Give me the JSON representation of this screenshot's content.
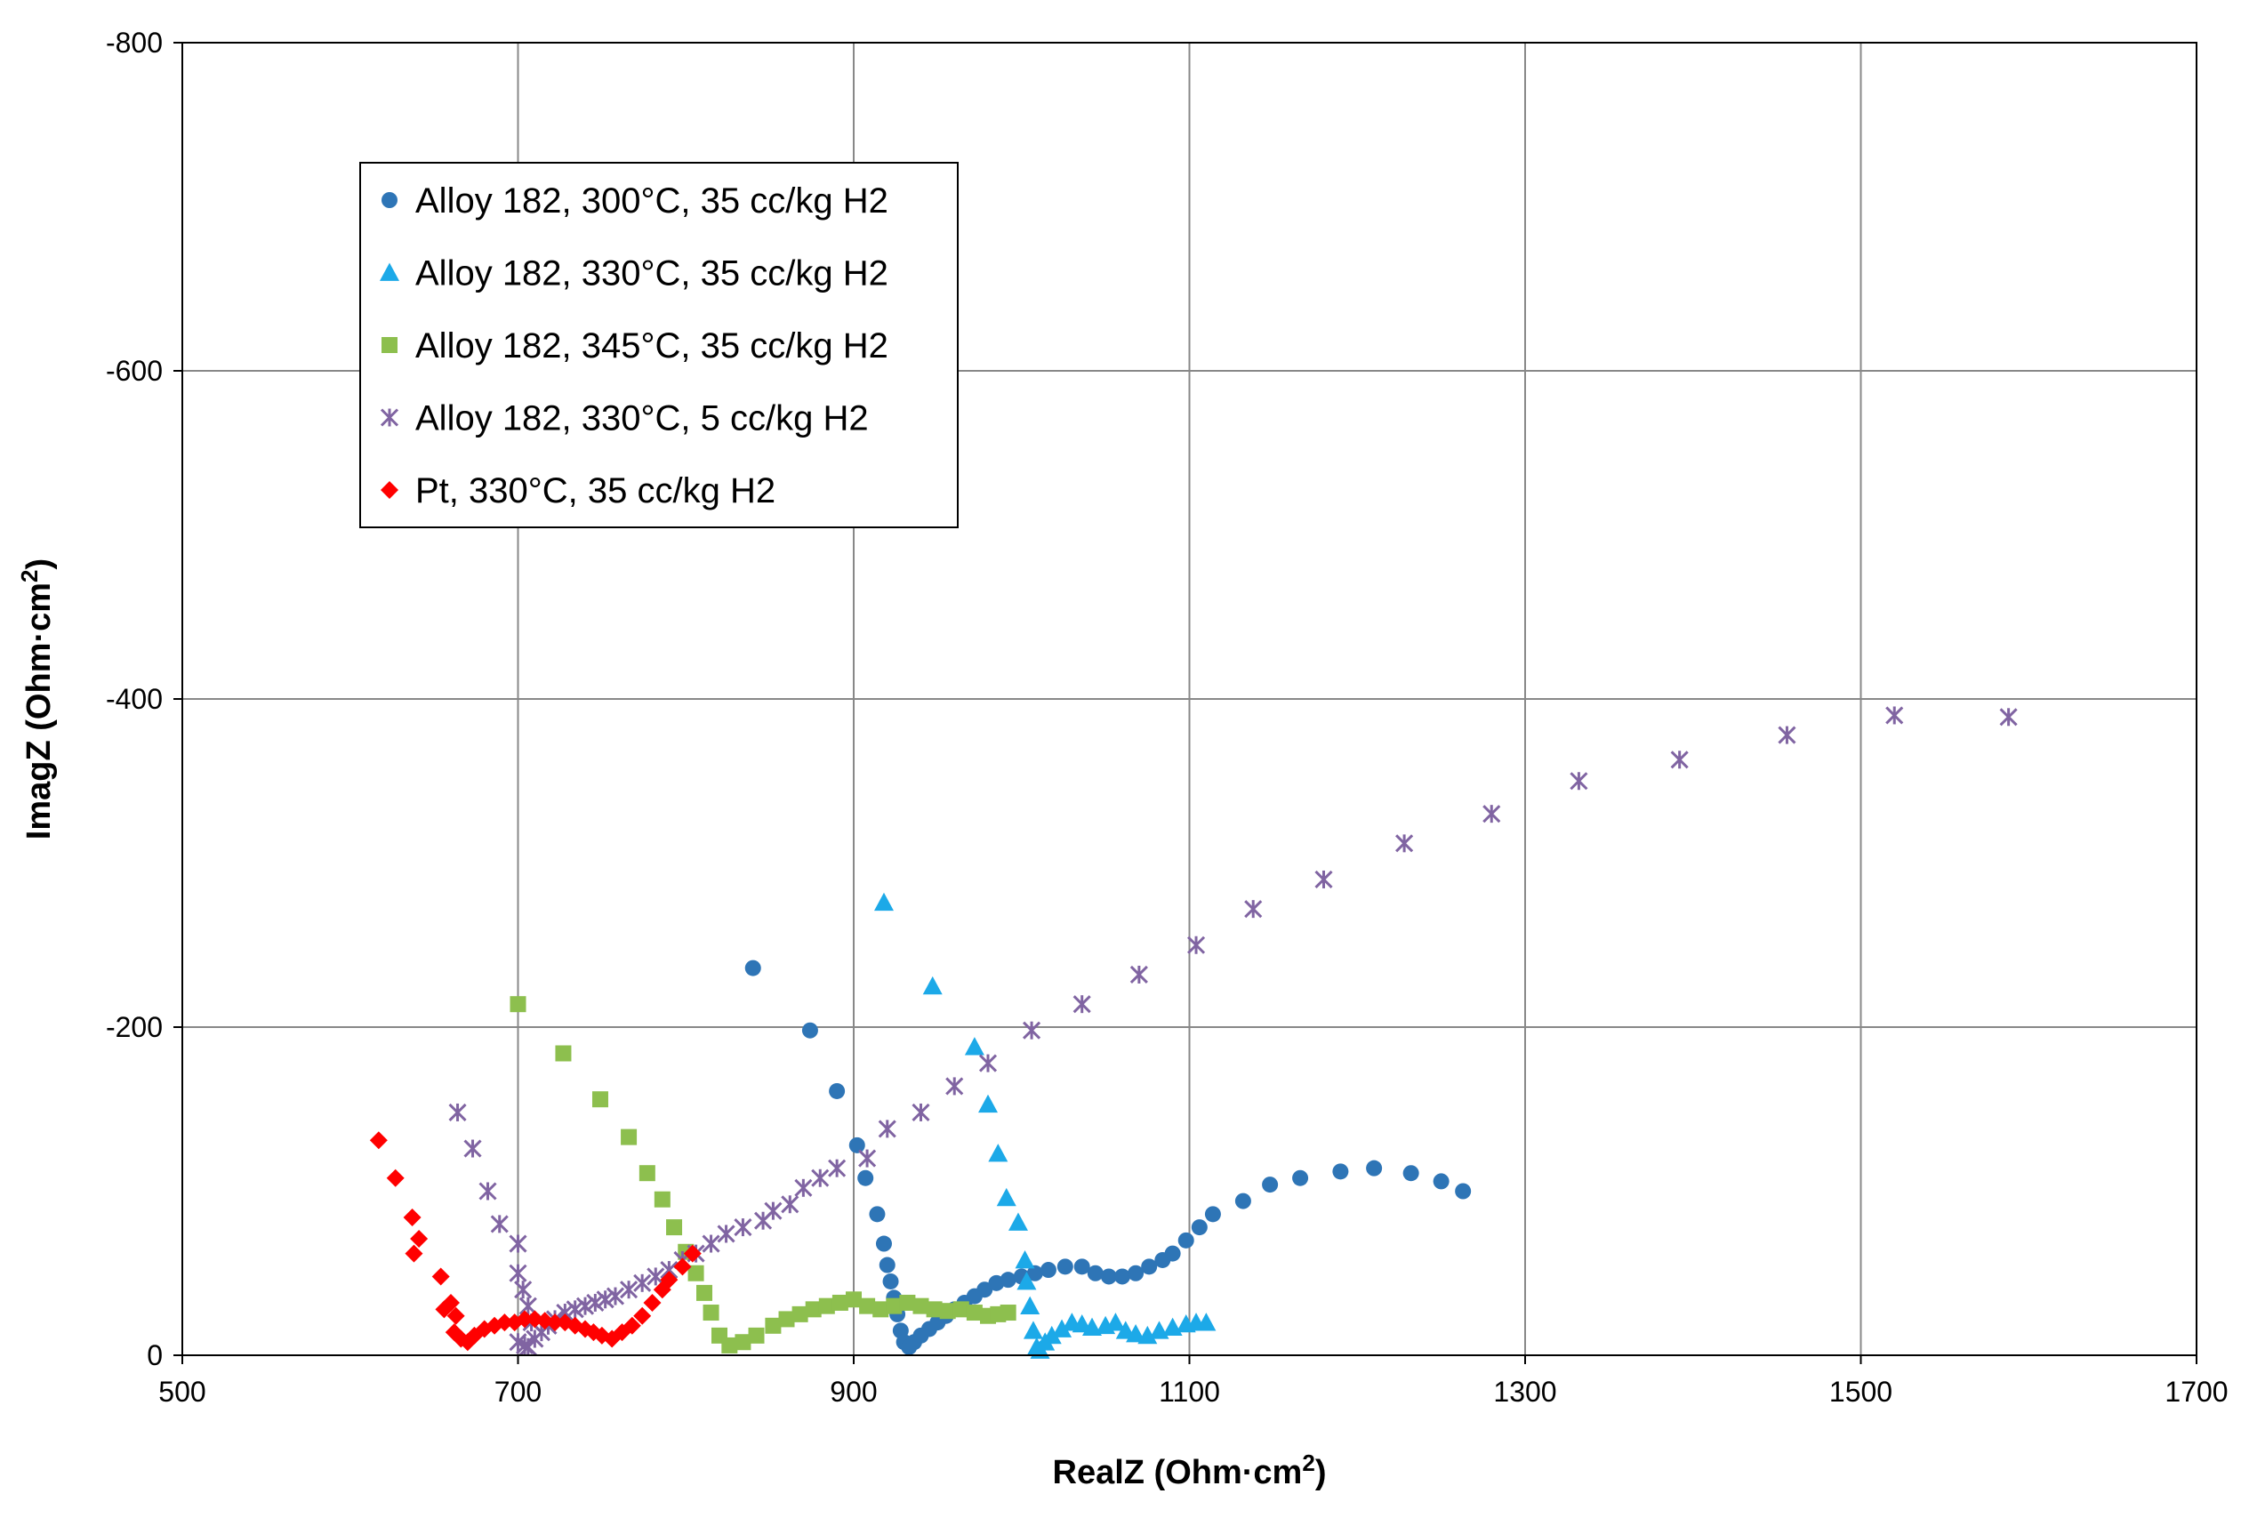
{
  "chart_data": {
    "type": "scatter",
    "title": "",
    "xlabel": "RealZ (Ohm·cm",
    "xlabel_sup": "2",
    "xlabel_close": ")",
    "ylabel": "ImagZ (Ohm·cm",
    "ylabel_sup": "2",
    "ylabel_close": ")",
    "xlim": [
      500,
      1700
    ],
    "ylim": [
      0,
      -800
    ],
    "y_inverted": true,
    "grid": true,
    "legend_position": "top-left",
    "x_ticks": [
      500,
      700,
      900,
      1100,
      1300,
      1500,
      1700
    ],
    "y_ticks": [
      0,
      -200,
      -400,
      -600,
      -800
    ],
    "x_tick_labels": [
      "500",
      "700",
      "900",
      "1100",
      "1300",
      "1500",
      "1700"
    ],
    "y_tick_labels": [
      "0",
      "-200",
      "-400",
      "-600",
      "-800"
    ],
    "series": [
      {
        "name": "Alloy 182, 300°C, 35 cc/kg H2",
        "marker": "circle",
        "color": "#2E75B6",
        "x": [
          840,
          874,
          890,
          902,
          907,
          914,
          918,
          920,
          922,
          924,
          926,
          928,
          930,
          933,
          936,
          940,
          945,
          950,
          955,
          960,
          966,
          972,
          978,
          985,
          992,
          1000,
          1008,
          1016,
          1026,
          1036,
          1044,
          1052,
          1060,
          1068,
          1076,
          1084,
          1090,
          1098,
          1106,
          1114,
          1132,
          1148,
          1166,
          1190,
          1210,
          1232,
          1250,
          1263
        ],
        "y": [
          -236,
          -198,
          -161,
          -128,
          -108,
          -86,
          -68,
          -55,
          -45,
          -35,
          -25,
          -15,
          -8,
          -5,
          -8,
          -12,
          -16,
          -20,
          -24,
          -28,
          -32,
          -36,
          -40,
          -44,
          -46,
          -48,
          -50,
          -52,
          -54,
          -54,
          -50,
          -48,
          -48,
          -50,
          -54,
          -58,
          -62,
          -70,
          -78,
          -86,
          -94,
          -104,
          -108,
          -112,
          -114,
          -111,
          -106,
          -100
        ]
      },
      {
        "name": "Alloy 182, 330°C, 35 cc/kg H2",
        "marker": "triangle",
        "color": "#1CA9E8",
        "x": [
          918,
          947,
          972,
          980,
          986,
          991,
          998,
          1002,
          1003,
          1005,
          1007,
          1009,
          1011,
          1014,
          1018,
          1024,
          1030,
          1036,
          1042,
          1050,
          1056,
          1062,
          1068,
          1075,
          1082,
          1090,
          1098,
          1104,
          1110
        ],
        "y": [
          -276,
          -225,
          -188,
          -153,
          -123,
          -96,
          -81,
          -58,
          -45,
          -30,
          -15,
          -5,
          -3,
          -8,
          -12,
          -16,
          -20,
          -19,
          -17,
          -18,
          -20,
          -15,
          -13,
          -12,
          -15,
          -17,
          -19,
          -20,
          -20
        ]
      },
      {
        "name": "Alloy 182, 345°C, 35 cc/kg H2",
        "marker": "square",
        "color": "#8DBF4E",
        "x": [
          700,
          727,
          749,
          766,
          777,
          786,
          793,
          800,
          806,
          811,
          815,
          820,
          826,
          834,
          842,
          852,
          860,
          868,
          876,
          884,
          892,
          900,
          908,
          916,
          924,
          932,
          940,
          948,
          956,
          964,
          972,
          980,
          986,
          992
        ],
        "y": [
          -214,
          -184,
          -156,
          -133,
          -111,
          -95,
          -78,
          -63,
          -50,
          -38,
          -26,
          -12,
          -6,
          -8,
          -12,
          -18,
          -22,
          -25,
          -28,
          -30,
          -32,
          -34,
          -30,
          -28,
          -30,
          -32,
          -30,
          -28,
          -27,
          -28,
          -26,
          -24,
          -25,
          -26
        ]
      },
      {
        "name": "Alloy 182, 330°C, 5 cc/kg H2",
        "marker": "star",
        "color": "#8064A2",
        "x": [
          664,
          673,
          682,
          689,
          700,
          700,
          703,
          706,
          708,
          700,
          704,
          706,
          710,
          714,
          718,
          722,
          728,
          734,
          740,
          746,
          752,
          758,
          766,
          774,
          782,
          790,
          798,
          806,
          815,
          824,
          834,
          846,
          852,
          862,
          870,
          880,
          890,
          908,
          920,
          940,
          960,
          980,
          1006,
          1036,
          1070,
          1104,
          1138,
          1180,
          1228,
          1280,
          1332,
          1392,
          1456,
          1520,
          1588
        ],
        "y": [
          -148,
          -126,
          -100,
          -80,
          -68,
          -50,
          -40,
          -30,
          -20,
          -8,
          -6,
          -5,
          -10,
          -14,
          -18,
          -22,
          -26,
          -28,
          -30,
          -32,
          -34,
          -36,
          -40,
          -44,
          -48,
          -52,
          -58,
          -62,
          -68,
          -74,
          -78,
          -82,
          -88,
          -92,
          -102,
          -108,
          -114,
          -120,
          -138,
          -148,
          -164,
          -178,
          -198,
          -214,
          -232,
          -250,
          -272,
          -290,
          -312,
          -330,
          -350,
          -363,
          -378,
          -390,
          -389
        ],
        "x_fix": []
      },
      {
        "name": "Pt, 330°C, 35 cc/kg H2",
        "marker": "diamond",
        "color": "#FF0000",
        "x": [
          617,
          627,
          637,
          641,
          638,
          654,
          660,
          656,
          663,
          662,
          666,
          670,
          674,
          680,
          686,
          692,
          698,
          704,
          710,
          716,
          722,
          728,
          734,
          740,
          745,
          750,
          756,
          762,
          768,
          774,
          780,
          786,
          790,
          798,
          804
        ],
        "y": [
          -131,
          -108,
          -84,
          -71,
          -62,
          -48,
          -32,
          -28,
          -24,
          -14,
          -10,
          -8,
          -12,
          -16,
          -18,
          -20,
          -20,
          -22,
          -22,
          -21,
          -20,
          -20,
          -18,
          -16,
          -14,
          -12,
          -10,
          -14,
          -18,
          -24,
          -32,
          -40,
          -46,
          -54,
          -62
        ]
      }
    ]
  }
}
